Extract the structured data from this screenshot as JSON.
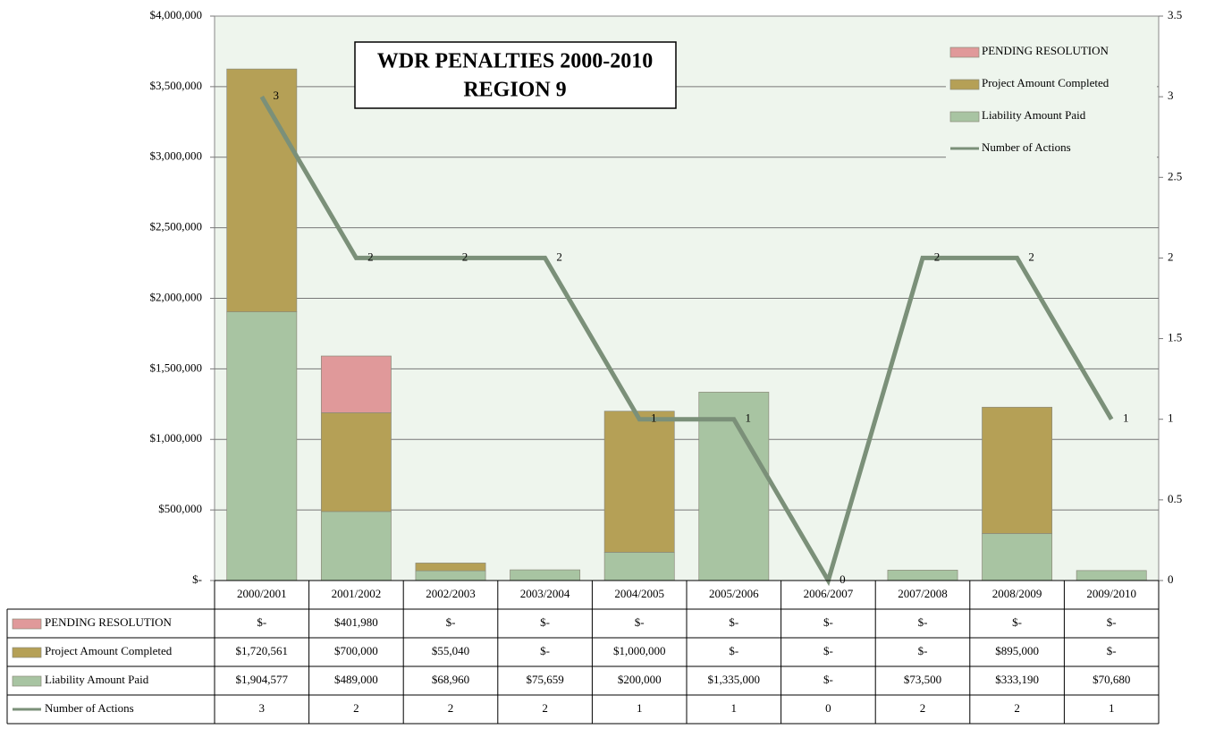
{
  "chart_data": {
    "type": "bar",
    "title": "WDR PENALTIES 2000-2010",
    "subtitle": "REGION 9",
    "categories": [
      "2000/2001",
      "2001/2002",
      "2002/2003",
      "2003/2004",
      "2004/2005",
      "2005/2006",
      "2006/2007",
      "2007/2008",
      "2008/2009",
      "2009/2010"
    ],
    "series": [
      {
        "name": "PENDING RESOLUTION",
        "color": "#e0999a",
        "type": "bar",
        "values": [
          0,
          401980,
          0,
          0,
          0,
          0,
          0,
          0,
          0,
          0
        ],
        "value_labels": [
          "$-",
          "$401,980",
          "$-",
          "$-",
          "$-",
          "$-",
          "$-",
          "$-",
          "$-",
          "$-"
        ]
      },
      {
        "name": "Project Amount Completed",
        "color": "#b5a056",
        "type": "bar",
        "values": [
          1720561,
          700000,
          55040,
          0,
          1000000,
          0,
          0,
          0,
          895000,
          0
        ],
        "value_labels": [
          "$1,720,561",
          "$700,000",
          "$55,040",
          "$-",
          "$1,000,000",
          "$-",
          "$-",
          "$-",
          "$895,000",
          "$-"
        ]
      },
      {
        "name": "Liability Amount Paid",
        "color": "#a8c4a2",
        "type": "bar",
        "values": [
          1904577,
          489000,
          68960,
          75659,
          200000,
          1335000,
          0,
          73500,
          333190,
          70680
        ],
        "value_labels": [
          "$1,904,577",
          "$489,000",
          "$68,960",
          "$75,659",
          "$200,000",
          "$1,335,000",
          "$-",
          "$73,500",
          "$333,190",
          "$70,680"
        ]
      },
      {
        "name": "Number of Actions",
        "color": "#7b9079",
        "type": "line",
        "axis": "y2",
        "values": [
          3,
          2,
          2,
          2,
          1,
          1,
          0,
          2,
          2,
          1
        ]
      }
    ],
    "ylim": [
      0,
      4000000
    ],
    "yticks": [
      {
        "value": 0,
        "label": "$-"
      },
      {
        "value": 500000,
        "label": "$500,000"
      },
      {
        "value": 1000000,
        "label": "$1,000,000"
      },
      {
        "value": 1500000,
        "label": "$1,500,000"
      },
      {
        "value": 2000000,
        "label": "$2,000,000"
      },
      {
        "value": 2500000,
        "label": "$2,500,000"
      },
      {
        "value": 3000000,
        "label": "$3,000,000"
      },
      {
        "value": 3500000,
        "label": "$3,500,000"
      },
      {
        "value": 4000000,
        "label": "$4,000,000"
      }
    ],
    "y2lim": [
      0,
      3.5
    ],
    "y2ticks": [
      0,
      0.5,
      1,
      1.5,
      2,
      2.5,
      3,
      3.5
    ],
    "grid": true,
    "legend": "top-right"
  }
}
